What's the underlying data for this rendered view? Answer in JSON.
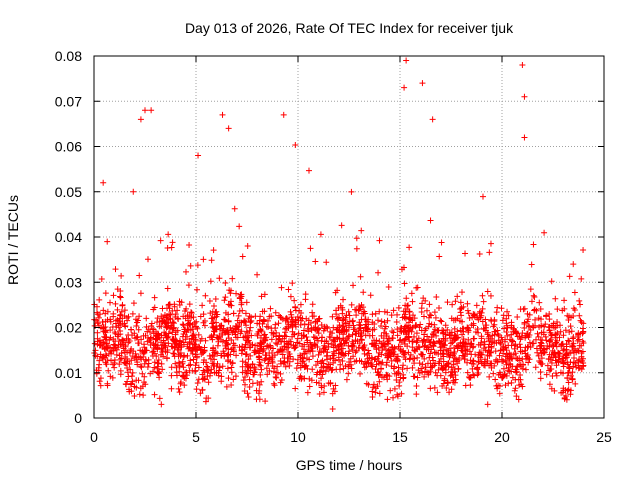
{
  "chart_data": {
    "type": "scatter",
    "title": "Day 013 of 2026, Rate Of TEC Index for receiver tjuk",
    "xlabel": "GPS time / hours",
    "ylabel": "ROTI / TECUs",
    "xlim": [
      0,
      25
    ],
    "ylim": [
      0,
      0.08
    ],
    "x_ticks": [
      0,
      5,
      10,
      15,
      20,
      25
    ],
    "x_tick_labels": [
      "0",
      "5",
      "10",
      "15",
      "20",
      "25"
    ],
    "y_ticks": [
      0,
      0.01,
      0.02,
      0.03,
      0.04,
      0.05,
      0.06,
      0.07,
      0.08
    ],
    "y_tick_labels": [
      "0",
      "0.01",
      "0.02",
      "0.03",
      "0.04",
      "0.05",
      "0.06",
      "0.07",
      "0.08"
    ],
    "grid": true,
    "marker": "plus",
    "color": "#ff0000",
    "series": [
      {
        "name": "ROTI",
        "x_range": [
          0,
          24
        ],
        "points_per_hour": 380,
        "typical_min": 0.006,
        "typical_max": 0.03,
        "median": 0.016,
        "notable_points": [
          {
            "x": 0.45,
            "y": 0.052
          },
          {
            "x": 2.3,
            "y": 0.066
          },
          {
            "x": 2.5,
            "y": 0.068
          },
          {
            "x": 2.8,
            "y": 0.068
          },
          {
            "x": 3.3,
            "y": 0.003
          },
          {
            "x": 5.1,
            "y": 0.058
          },
          {
            "x": 6.3,
            "y": 0.067
          },
          {
            "x": 6.6,
            "y": 0.064
          },
          {
            "x": 9.3,
            "y": 0.067
          },
          {
            "x": 11.7,
            "y": 0.002
          },
          {
            "x": 15.3,
            "y": 0.079
          },
          {
            "x": 15.2,
            "y": 0.073
          },
          {
            "x": 16.1,
            "y": 0.074
          },
          {
            "x": 16.6,
            "y": 0.066
          },
          {
            "x": 19.3,
            "y": 0.003
          },
          {
            "x": 21.0,
            "y": 0.078
          },
          {
            "x": 21.1,
            "y": 0.071
          },
          {
            "x": 21.1,
            "y": 0.062
          }
        ]
      }
    ]
  }
}
